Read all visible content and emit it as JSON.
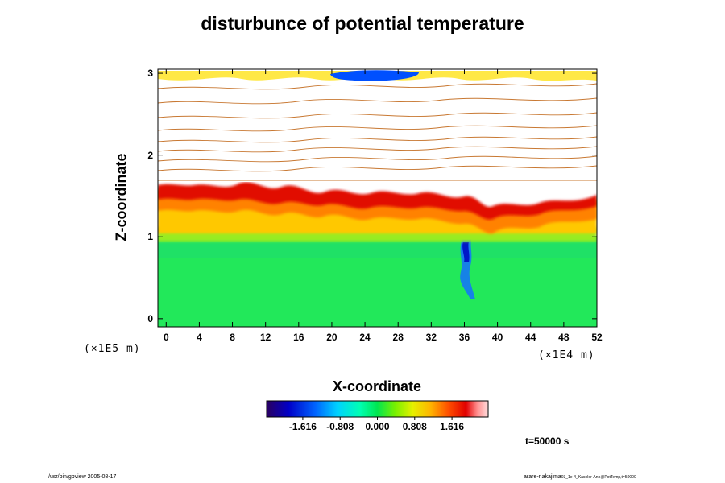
{
  "chart_data": {
    "type": "heatmap",
    "title": "disturbunce of potential temperature",
    "xlabel": "X-coordinate",
    "ylabel": "Z-coordinate",
    "x_unit": "(×1E4 m)",
    "y_unit": "(×1E5 m)",
    "xlim": [
      -1,
      52
    ],
    "ylim": [
      -0.1,
      3.05
    ],
    "x_ticks": [
      0,
      4,
      8,
      12,
      16,
      20,
      24,
      28,
      32,
      36,
      40,
      44,
      48,
      52
    ],
    "y_ticks": [
      0,
      1,
      2,
      3
    ],
    "colorbar": {
      "min": -2.4,
      "max": 2.4,
      "tick_values": [
        -1.616,
        -0.808,
        0.0,
        0.808,
        1.616
      ],
      "tick_labels": [
        "-1.616",
        "-0.808",
        "0.000",
        "0.808",
        "1.616"
      ]
    },
    "regions": {
      "lower_layer": {
        "z_range": [
          -0.1,
          0.95
        ],
        "approx_value": 0.0
      },
      "transition_layer": {
        "z_range": [
          0.95,
          1.1
        ],
        "approx_value": 0.3
      },
      "mid_layer": {
        "z_range": [
          1.1,
          1.6
        ],
        "approx_value": 1.0
      },
      "top_of_mixed_layer": {
        "z_range": [
          1.45,
          1.65
        ],
        "approx_value": 1.8
      },
      "upper_stable_layer": {
        "z_range": [
          1.7,
          3.05
        ],
        "approx_value": "contour lines"
      }
    },
    "legend": "none",
    "grid": false
  },
  "annotations": {
    "time": "t=50000 s",
    "footer_left": "/usr/bin/gpview 2005-08-17",
    "footer_right_main": "arare-nakajima",
    "footer_right_small": "03_1e-4_Kacolor-Ano@PotTemp,t=50000"
  },
  "colors": {
    "palette": [
      "#2a0060",
      "#0000c8",
      "#0064ff",
      "#00c8ff",
      "#00ffc8",
      "#00e664",
      "#64f000",
      "#d2f000",
      "#ffd200",
      "#ff8c00",
      "#ff3200",
      "#dc0000",
      "#ff9696",
      "#ffd2d2"
    ]
  }
}
